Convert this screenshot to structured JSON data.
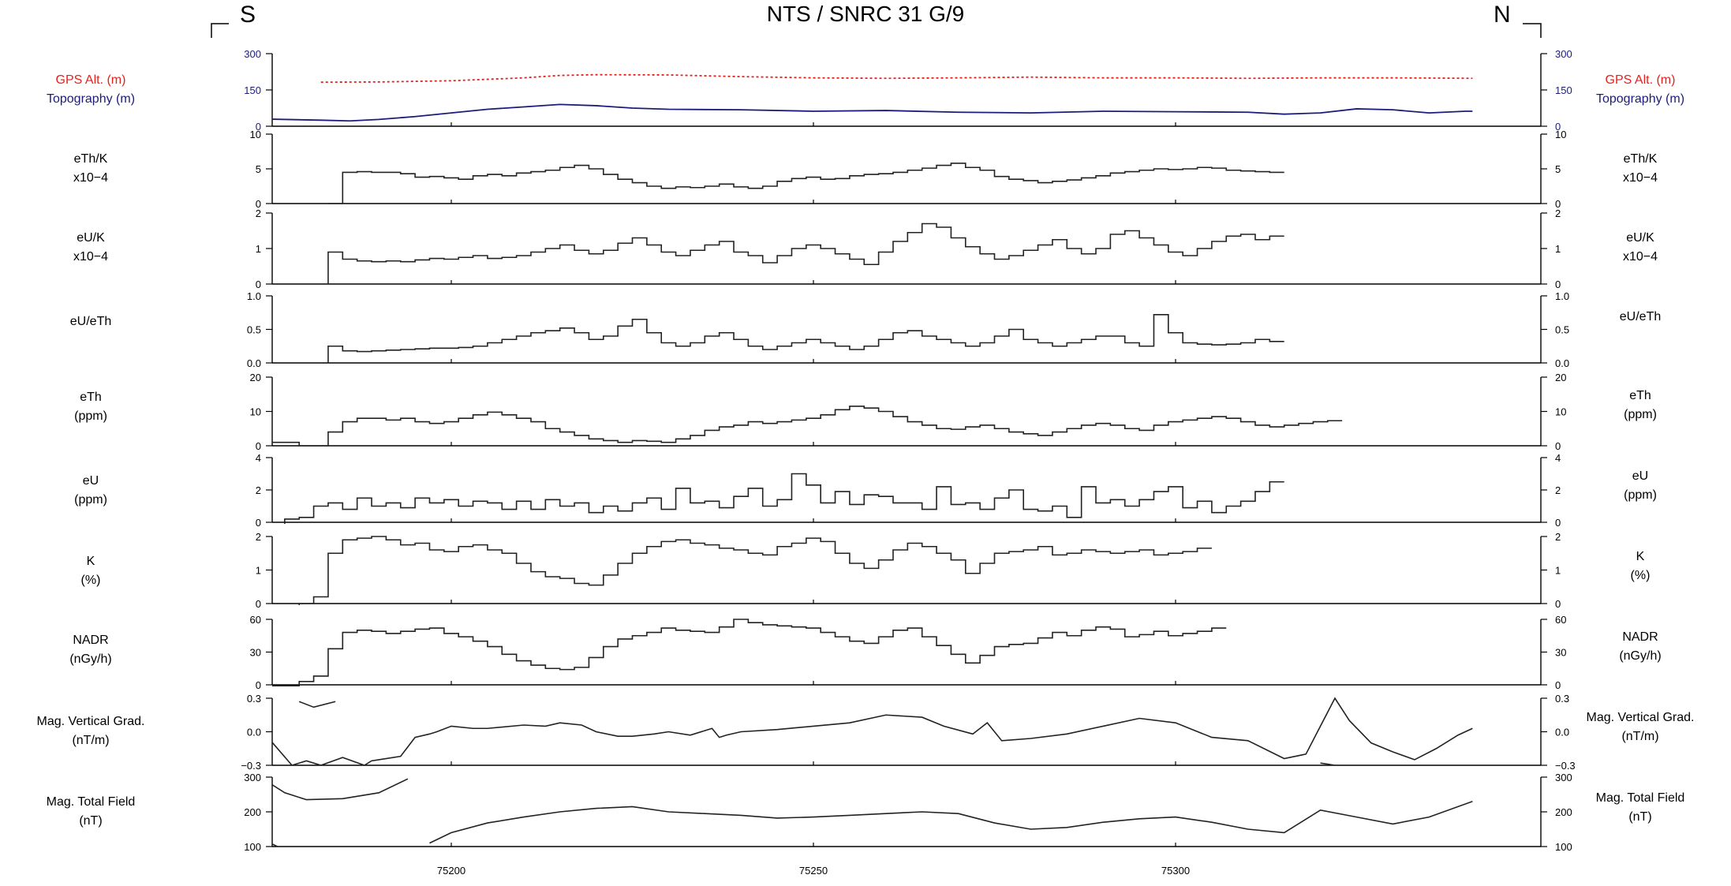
{
  "header": {
    "title": "NTS / SNRC 31 G/9",
    "left_direction": "S",
    "right_direction": "N"
  },
  "colors": {
    "gps": "#e8201a",
    "topography": "#1c1c7a",
    "trace": "#222222"
  },
  "chart_data": {
    "type": "line",
    "x_ticks": [
      75200,
      75250,
      75300
    ],
    "xlim": [
      75174,
      75342
    ],
    "panels": [
      {
        "id": "alt",
        "left_label": [
          "GPS Alt. (m)",
          "Topography (m)"
        ],
        "right_label": [
          "GPS Alt. (m)",
          "Topography (m)"
        ],
        "ylim": [
          0,
          300
        ],
        "yticks": [
          "0",
          "150",
          "300"
        ],
        "series": [
          {
            "name": "GPS Alt. (m)",
            "color": "#e8201a",
            "dashed": true,
            "x": [
              75182,
              75190,
              75200,
              75210,
              75215,
              75220,
              75230,
              75240,
              75250,
              75260,
              75270,
              75280,
              75290,
              75300,
              75310,
              75320,
              75330,
              75341
            ],
            "y": [
              182,
              183,
              188,
              200,
              210,
              213,
              212,
              205,
              200,
              198,
              200,
              203,
              200,
              200,
              198,
              200,
              200,
              198
            ]
          },
          {
            "name": "Topography (m)",
            "color": "#1c1c7a",
            "dashed": false,
            "x": [
              75174,
              75182,
              75186,
              75190,
              75195,
              75200,
              75205,
              75210,
              75215,
              75220,
              75225,
              75230,
              75240,
              75250,
              75260,
              75270,
              75280,
              75290,
              75300,
              75310,
              75315,
              75320,
              75325,
              75330,
              75335,
              75340,
              75341
            ],
            "y": [
              30,
              25,
              22,
              28,
              40,
              55,
              70,
              80,
              90,
              85,
              75,
              70,
              68,
              62,
              65,
              58,
              55,
              62,
              60,
              58,
              50,
              55,
              72,
              68,
              55,
              62,
              62
            ]
          }
        ]
      },
      {
        "id": "ethk",
        "left_label": [
          "eTh/K",
          "x10−4"
        ],
        "right_label": [
          "eTh/K",
          "x10−4"
        ],
        "ylim": [
          0,
          10
        ],
        "yticks": [
          "0",
          "5",
          "10"
        ],
        "step": true,
        "x_start": 75183,
        "dx": 2,
        "values": [
          0,
          4.5,
          4.6,
          4.5,
          4.5,
          4.3,
          3.8,
          3.9,
          3.7,
          3.5,
          4.0,
          4.2,
          4.0,
          4.4,
          4.6,
          4.8,
          5.2,
          5.5,
          5.0,
          4.2,
          3.5,
          3.0,
          2.5,
          2.2,
          2.4,
          2.3,
          2.5,
          2.8,
          2.4,
          2.2,
          2.5,
          3.2,
          3.6,
          3.8,
          3.5,
          3.6,
          4.0,
          4.2,
          4.3,
          4.5,
          4.8,
          5.1,
          5.5,
          5.8,
          5.2,
          4.8,
          3.9,
          3.5,
          3.3,
          3.0,
          3.2,
          3.4,
          3.7,
          4.0,
          4.4,
          4.6,
          4.8,
          5.0,
          4.9,
          5.0,
          5.2,
          5.1,
          4.8,
          4.7,
          4.6,
          4.5
        ]
      },
      {
        "id": "euk",
        "left_label": [
          "eU/K",
          "x10−4"
        ],
        "right_label": [
          "eU/K",
          "x10−4"
        ],
        "ylim": [
          0,
          2
        ],
        "yticks": [
          "0",
          "1",
          "2"
        ],
        "step": true,
        "x_start": 75183,
        "dx": 2,
        "values": [
          0.9,
          0.7,
          0.65,
          0.63,
          0.65,
          0.63,
          0.68,
          0.72,
          0.7,
          0.75,
          0.8,
          0.72,
          0.75,
          0.8,
          0.9,
          1.0,
          1.1,
          0.95,
          0.85,
          0.95,
          1.15,
          1.3,
          1.1,
          0.9,
          0.8,
          0.95,
          1.1,
          1.2,
          0.9,
          0.8,
          0.6,
          0.8,
          1.0,
          1.1,
          1.0,
          0.85,
          0.7,
          0.55,
          0.9,
          1.2,
          1.45,
          1.7,
          1.6,
          1.3,
          1.05,
          0.85,
          0.7,
          0.8,
          0.95,
          1.1,
          1.25,
          1.0,
          0.85,
          1.0,
          1.4,
          1.5,
          1.3,
          1.1,
          0.9,
          0.8,
          1.0,
          1.2,
          1.35,
          1.4,
          1.25,
          1.35
        ]
      },
      {
        "id": "euth",
        "left_label": [
          "eU/eTh"
        ],
        "right_label": [
          "eU/eTh"
        ],
        "ylim": [
          0,
          1.0
        ],
        "yticks": [
          "0.0",
          "0.5",
          "1.0"
        ],
        "step": true,
        "x_start": 75183,
        "dx": 2,
        "values": [
          0.25,
          0.18,
          0.17,
          0.18,
          0.19,
          0.2,
          0.21,
          0.22,
          0.22,
          0.23,
          0.25,
          0.3,
          0.35,
          0.4,
          0.45,
          0.48,
          0.52,
          0.45,
          0.35,
          0.4,
          0.55,
          0.65,
          0.45,
          0.3,
          0.25,
          0.3,
          0.4,
          0.45,
          0.35,
          0.25,
          0.2,
          0.25,
          0.3,
          0.35,
          0.3,
          0.25,
          0.2,
          0.25,
          0.35,
          0.45,
          0.48,
          0.4,
          0.35,
          0.3,
          0.25,
          0.3,
          0.4,
          0.5,
          0.35,
          0.3,
          0.25,
          0.3,
          0.35,
          0.4,
          0.4,
          0.3,
          0.25,
          0.72,
          0.45,
          0.3,
          0.28,
          0.27,
          0.28,
          0.3,
          0.35,
          0.32
        ]
      },
      {
        "id": "eth",
        "left_label": [
          "eTh",
          "(ppm)"
        ],
        "right_label": [
          "eTh",
          "(ppm)"
        ],
        "ylim": [
          0,
          20
        ],
        "yticks": [
          "0",
          "10",
          "20"
        ],
        "step": true,
        "x_start": 75175,
        "dx": 2,
        "values": [
          1,
          1,
          0,
          0,
          4,
          7,
          8,
          8,
          7.5,
          8,
          7,
          6.5,
          7,
          8,
          9,
          9.8,
          9,
          8,
          7,
          5,
          4,
          3,
          2,
          1.5,
          1,
          1.5,
          1.3,
          1,
          2,
          3,
          4.5,
          5.5,
          6,
          7,
          6.5,
          7,
          7.5,
          8,
          9,
          10.5,
          11.5,
          11,
          10,
          8.5,
          7,
          6,
          5,
          4.8,
          5.5,
          6,
          5,
          4,
          3.5,
          3,
          4,
          5,
          6,
          6.5,
          6,
          5,
          4.5,
          6,
          7,
          7.5,
          8,
          8.5,
          8,
          7,
          6,
          5.5,
          6,
          6.5,
          7,
          7.3
        ]
      },
      {
        "id": "eu",
        "left_label": [
          "eU",
          "(ppm)"
        ],
        "right_label": [
          "eU",
          "(ppm)"
        ],
        "ylim": [
          0,
          4
        ],
        "yticks": [
          "0",
          "2",
          "4"
        ],
        "step": true,
        "x_start": 75175,
        "dx": 2,
        "values": [
          -0.8,
          0.2,
          0.3,
          1.0,
          1.2,
          0.8,
          1.5,
          1.0,
          1.2,
          0.9,
          1.5,
          1.2,
          1.4,
          1.0,
          1.3,
          1.2,
          0.8,
          1.3,
          0.8,
          1.4,
          1.0,
          1.2,
          0.6,
          1.0,
          0.7,
          1.2,
          1.5,
          0.8,
          2.1,
          1.2,
          1.3,
          0.9,
          1.6,
          2.1,
          1.0,
          1.4,
          3.0,
          2.3,
          1.2,
          1.9,
          1.1,
          1.7,
          1.6,
          1.2,
          1.2,
          0.8,
          2.2,
          1.1,
          1.2,
          0.8,
          1.5,
          2.0,
          0.8,
          0.7,
          1.0,
          0.3,
          2.2,
          1.2,
          1.4,
          1.0,
          1.4,
          1.9,
          2.2,
          0.9,
          1.3,
          0.6,
          1.0,
          1.3,
          1.9,
          2.5
        ]
      },
      {
        "id": "k",
        "left_label": [
          "K",
          "(%)"
        ],
        "right_label": [
          "K",
          "(%)"
        ],
        "ylim": [
          0,
          2
        ],
        "yticks": [
          "0",
          "1",
          "2"
        ],
        "step": true,
        "x_start": 75175,
        "dx": 2,
        "values": [
          -0.1,
          -0.1,
          0.0,
          0.2,
          1.5,
          1.9,
          1.95,
          2.0,
          1.9,
          1.75,
          1.8,
          1.6,
          1.55,
          1.7,
          1.75,
          1.6,
          1.5,
          1.2,
          0.95,
          0.8,
          0.75,
          0.6,
          0.55,
          0.85,
          1.2,
          1.5,
          1.7,
          1.85,
          1.9,
          1.8,
          1.75,
          1.65,
          1.6,
          1.5,
          1.45,
          1.7,
          1.8,
          1.95,
          1.85,
          1.5,
          1.2,
          1.05,
          1.3,
          1.6,
          1.8,
          1.7,
          1.5,
          1.3,
          0.9,
          1.2,
          1.5,
          1.55,
          1.6,
          1.7,
          1.45,
          1.5,
          1.6,
          1.55,
          1.5,
          1.55,
          1.6,
          1.45,
          1.5,
          1.55,
          1.65
        ]
      },
      {
        "id": "nadr",
        "left_label": [
          "NADR",
          "(nGy/h)"
        ],
        "right_label": [
          "NADR",
          "(nGy/h)"
        ],
        "ylim": [
          0,
          60
        ],
        "yticks": [
          "0",
          "30",
          "60"
        ],
        "step": true,
        "x_start": 75175,
        "dx": 2,
        "values": [
          -1,
          -1,
          3,
          8,
          33,
          48,
          50,
          49,
          47,
          49,
          51,
          52,
          47,
          44,
          40,
          35,
          28,
          22,
          18,
          15,
          14,
          16,
          25,
          35,
          42,
          45,
          48,
          52,
          50,
          49,
          48,
          53,
          60,
          57,
          55,
          54,
          53,
          52,
          48,
          44,
          40,
          38,
          44,
          50,
          52,
          44,
          36,
          28,
          20,
          27,
          35,
          37,
          38,
          43,
          48,
          45,
          50,
          53,
          51,
          44,
          46,
          49,
          45,
          47,
          49,
          52
        ]
      },
      {
        "id": "magvg",
        "left_label": [
          "Mag. Vertical Grad.",
          "(nT/m)"
        ],
        "right_label": [
          "Mag. Vertical Grad.",
          "(nT/m)"
        ],
        "ylim": [
          -0.3,
          0.3
        ],
        "yticks": [
          "−0.3",
          "0.0",
          "0.3"
        ],
        "step": false,
        "series": [
          {
            "x": [
              75179,
              75181,
              75184
            ],
            "y": [
              0.27,
              0.22,
              0.27
            ]
          },
          {
            "x": [
              75174,
              75178,
              75180,
              75182,
              75185,
              75188,
              75189,
              75190,
              75193,
              75195,
              75197,
              75198,
              75200,
              75203,
              75205,
              75210,
              75213,
              75215,
              75218,
              75220,
              75223,
              75225,
              75228,
              75230,
              75233,
              75236,
              75237,
              75238,
              75240,
              75245,
              75250,
              75255,
              75260,
              75265,
              75268,
              75272,
              75274,
              75276,
              75280,
              75285,
              75290,
              75295,
              75300,
              75305,
              75310,
              75315,
              75318,
              75320,
              75322,
              75324,
              75327,
              75330,
              75333,
              75336,
              75339,
              75341
            ],
            "y": [
              0.0,
              -0.3,
              -0.26,
              -0.3,
              -0.23,
              -0.3,
              -0.26,
              -0.25,
              -0.22,
              -0.05,
              -0.02,
              0.0,
              0.05,
              0.03,
              0.03,
              0.06,
              0.05,
              0.08,
              0.06,
              0.0,
              -0.04,
              -0.04,
              -0.02,
              0.0,
              -0.03,
              0.03,
              -0.05,
              -0.03,
              0.0,
              0.02,
              0.05,
              0.08,
              0.15,
              0.13,
              0.05,
              -0.02,
              0.08,
              -0.08,
              -0.06,
              -0.02,
              0.05,
              0.12,
              0.08,
              -0.05,
              -0.08,
              -0.24,
              -0.2,
              0.05,
              0.3,
              0.1,
              -0.1,
              -0.18,
              -0.25,
              -0.15,
              -0.03,
              0.03
            ]
          },
          {
            "x": [
              75320,
              75321,
              75322
            ],
            "y": [
              -0.28,
              -0.29,
              -0.3
            ]
          }
        ]
      },
      {
        "id": "magtf",
        "left_label": [
          "Mag. Total Field",
          "(nT)"
        ],
        "right_label": [
          "Mag. Total Field",
          "(nT)"
        ],
        "ylim": [
          100,
          300
        ],
        "yticks": [
          "100",
          "200",
          "300"
        ],
        "step": false,
        "series": [
          {
            "x": [
              75174,
              75177,
              75180,
              75185,
              75190,
              75194
            ],
            "y": [
              295,
              255,
              235,
              238,
              255,
              295
            ]
          },
          {
            "x": [
              75174,
              75176
            ],
            "y": [
              120,
              100
            ]
          },
          {
            "x": [
              75197,
              75200,
              75205,
              75210,
              75215,
              75220,
              75225,
              75230,
              75235,
              75240,
              75245,
              75250,
              75255,
              75260,
              75265,
              75270,
              75275,
              75280,
              75285,
              75290,
              75295,
              75300,
              75305,
              75310,
              75315,
              75320,
              75325,
              75330,
              75335,
              75341
            ],
            "y": [
              110,
              140,
              168,
              185,
              200,
              210,
              215,
              200,
              195,
              190,
              182,
              185,
              190,
              195,
              200,
              195,
              168,
              150,
              155,
              170,
              180,
              185,
              170,
              150,
              140,
              205,
              185,
              165,
              185,
              230
            ]
          }
        ]
      }
    ]
  }
}
